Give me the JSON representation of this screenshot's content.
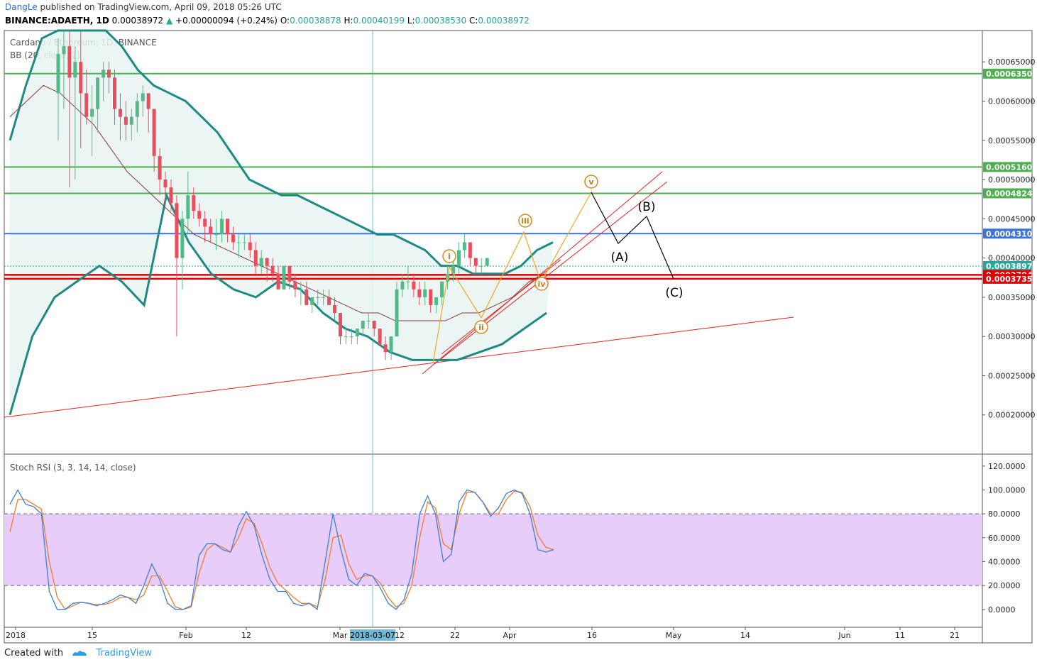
{
  "header": {
    "author": "DangLe",
    "published": "published on TradingView.com, April 09, 2018 05:26 UTC",
    "symbol": "BINANCE:ADAETH, 1D",
    "last": "0.00038972",
    "change": "+0.00000094 (+0.24%)",
    "o_label": "O:",
    "o": "0.00038878",
    "h_label": "H:",
    "h": "0.00040199",
    "l_label": "L:",
    "l": "0.00038530",
    "c_label": "C:",
    "c": "0.00038972"
  },
  "chart_data": {
    "type": "candlestick",
    "title": "Cardano / Ethereum, 1D, BINANCE",
    "indicator_label": "BB (20, close, 2)",
    "ylim": [
      0.00015,
      0.00069
    ],
    "x_ticks": [
      "2018",
      "15",
      "Feb",
      "12",
      "Mar",
      "12",
      "22",
      "Apr",
      "16",
      "May",
      "14",
      "Jun",
      "11",
      "21"
    ],
    "crosshair_date": "2018-03-07",
    "y_ticks": [
      "0.00065000",
      "0.00060000",
      "0.00055000",
      "0.00050000",
      "0.00045000",
      "0.00040000",
      "0.00035000",
      "0.00030000",
      "0.00025000",
      "0.00020000"
    ],
    "candles": [
      [
        0.00061,
        0.00068,
        0.00055,
        0.00066
      ],
      [
        0.00066,
        0.0007,
        0.00059,
        0.00067
      ],
      [
        0.00067,
        0.0007,
        0.00049,
        0.00063
      ],
      [
        0.00063,
        0.00067,
        0.0005,
        0.00065
      ],
      [
        0.00065,
        0.00069,
        0.00054,
        0.00061
      ],
      [
        0.00061,
        0.00064,
        0.00057,
        0.00058
      ],
      [
        0.00058,
        0.00062,
        0.00053,
        0.00059
      ],
      [
        0.00059,
        0.00063,
        0.00056,
        0.00063
      ],
      [
        0.00063,
        0.00065,
        0.0006,
        0.00064
      ],
      [
        0.00064,
        0.00065,
        0.00061,
        0.00063
      ],
      [
        0.00063,
        0.00064,
        0.00057,
        0.00059
      ],
      [
        0.00059,
        0.00061,
        0.00055,
        0.00058
      ],
      [
        0.00058,
        0.0006,
        0.00055,
        0.00057
      ],
      [
        0.00057,
        0.00059,
        0.00055,
        0.00058
      ],
      [
        0.00058,
        0.00061,
        0.00056,
        0.0006
      ],
      [
        0.0006,
        0.00062,
        0.00058,
        0.00061
      ],
      [
        0.00061,
        0.00061,
        0.00056,
        0.00059
      ],
      [
        0.00059,
        0.00059,
        0.00051,
        0.00053
      ],
      [
        0.00053,
        0.00054,
        0.00048,
        0.0005
      ],
      [
        0.0005,
        0.00051,
        0.00047,
        0.00049
      ],
      [
        0.00049,
        0.0005,
        0.00046,
        0.00047
      ],
      [
        0.00047,
        0.00048,
        0.0003,
        0.0004
      ],
      [
        0.0004,
        0.00046,
        0.00036,
        0.00045
      ],
      [
        0.00045,
        0.00051,
        0.00043,
        0.00048
      ],
      [
        0.00048,
        0.00049,
        0.00045,
        0.00046
      ],
      [
        0.00046,
        0.00047,
        0.00044,
        0.00045
      ],
      [
        0.00045,
        0.00046,
        0.00042,
        0.00044
      ],
      [
        0.00044,
        0.00045,
        0.00042,
        0.00043
      ],
      [
        0.00043,
        0.00045,
        0.00041,
        0.00043
      ],
      [
        0.00043,
        0.00046,
        0.00042,
        0.00045
      ],
      [
        0.00045,
        0.00045,
        0.00042,
        0.00043
      ],
      [
        0.00043,
        0.00044,
        0.00041,
        0.00042
      ],
      [
        0.00042,
        0.00043,
        0.0004,
        0.00042
      ],
      [
        0.00042,
        0.00043,
        0.00041,
        0.00042
      ],
      [
        0.00042,
        0.00043,
        0.0004,
        0.00041
      ],
      [
        0.00041,
        0.00042,
        0.00038,
        0.00039
      ],
      [
        0.00039,
        0.00041,
        0.00038,
        0.0004
      ],
      [
        0.0004,
        0.0004,
        0.00037,
        0.00039
      ],
      [
        0.00039,
        0.0004,
        0.00037,
        0.00038
      ],
      [
        0.00038,
        0.00039,
        0.00036,
        0.00036
      ],
      [
        0.00036,
        0.00039,
        0.00036,
        0.00039
      ],
      [
        0.00039,
        0.00039,
        0.00036,
        0.00037
      ],
      [
        0.00037,
        0.00038,
        0.00035,
        0.00036
      ],
      [
        0.00036,
        0.00037,
        0.00034,
        0.00036
      ],
      [
        0.00036,
        0.00037,
        0.00034,
        0.00034
      ],
      [
        0.00034,
        0.00035,
        0.00033,
        0.00035
      ],
      [
        0.00035,
        0.00036,
        0.00034,
        0.00035
      ],
      [
        0.00035,
        0.00036,
        0.00034,
        0.00035
      ],
      [
        0.00035,
        0.00036,
        0.00034,
        0.00034
      ],
      [
        0.00034,
        0.00035,
        0.00032,
        0.00033
      ],
      [
        0.00033,
        0.00033,
        0.00029,
        0.0003
      ],
      [
        0.0003,
        0.00031,
        0.00029,
        0.0003
      ],
      [
        0.0003,
        0.00031,
        0.00029,
        0.0003
      ],
      [
        0.0003,
        0.00031,
        0.00029,
        0.00031
      ],
      [
        0.00031,
        0.00032,
        0.0003,
        0.00032
      ],
      [
        0.00032,
        0.00033,
        0.00031,
        0.00032
      ],
      [
        0.00032,
        0.00032,
        0.0003,
        0.00031
      ],
      [
        0.00031,
        0.00031,
        0.00029,
        0.00029
      ],
      [
        0.00029,
        0.0003,
        0.00027,
        0.00028
      ],
      [
        0.00028,
        0.0003,
        0.00027,
        0.0003
      ],
      [
        0.0003,
        0.00037,
        0.0003,
        0.00036
      ],
      [
        0.00036,
        0.00038,
        0.00035,
        0.00037
      ],
      [
        0.00037,
        0.00039,
        0.00036,
        0.00037
      ],
      [
        0.00037,
        0.00038,
        0.00035,
        0.00036
      ],
      [
        0.00036,
        0.00037,
        0.00034,
        0.00035
      ],
      [
        0.00035,
        0.00037,
        0.00034,
        0.00036
      ],
      [
        0.00036,
        0.00036,
        0.00033,
        0.00034
      ],
      [
        0.00034,
        0.00035,
        0.00033,
        0.00035
      ],
      [
        0.00035,
        0.00037,
        0.00034,
        0.00037
      ],
      [
        0.00037,
        0.00039,
        0.00036,
        0.00038
      ],
      [
        0.00038,
        0.0004,
        0.00037,
        0.00039
      ],
      [
        0.00039,
        0.00042,
        0.00038,
        0.00041
      ],
      [
        0.00041,
        0.00043,
        0.0004,
        0.00042
      ],
      [
        0.00042,
        0.00042,
        0.00039,
        0.0004
      ],
      [
        0.0004,
        0.0004,
        0.00038,
        0.00039
      ],
      [
        0.00039,
        0.0004,
        0.00038,
        0.00039
      ],
      [
        0.00039,
        0.0004,
        0.00039,
        0.0004
      ]
    ],
    "bb_upper": [
      0.00055,
      0.00062,
      0.00068,
      0.00072,
      0.00074,
      0.00073,
      0.0007,
      0.00067,
      0.00064,
      0.00062,
      0.00061,
      0.0006,
      0.00058,
      0.00056,
      0.00053,
      0.0005,
      0.00049,
      0.00048,
      0.00048,
      0.00047,
      0.00046,
      0.00045,
      0.00044,
      0.00043,
      0.00043,
      0.00042,
      0.00041,
      0.00039,
      0.00039,
      0.00038,
      0.00038,
      0.00038,
      0.00039,
      0.00041,
      0.00042
    ],
    "bb_mid": [
      0.00058,
      0.0006,
      0.00062,
      0.00061,
      0.00059,
      0.00057,
      0.00054,
      0.00051,
      0.00049,
      0.00047,
      0.00045,
      0.00043,
      0.00042,
      0.00041,
      0.0004,
      0.00039,
      0.00038,
      0.00037,
      0.00036,
      0.00035,
      0.00034,
      0.00033,
      0.00033,
      0.00032,
      0.00032,
      0.00032,
      0.00032,
      0.00033,
      0.00033,
      0.00034,
      0.00035,
      0.00037,
      0.00038
    ],
    "bb_lower": [
      0.0002,
      0.0003,
      0.00035,
      0.00037,
      0.00039,
      0.00037,
      0.00034,
      0.00048,
      0.00042,
      0.00038,
      0.00036,
      0.00035,
      0.00037,
      0.00036,
      0.00033,
      0.00031,
      0.0003,
      0.00028,
      0.00027,
      0.00027,
      0.00027,
      0.00028,
      0.00029,
      0.00031,
      0.00033
    ],
    "horizontal_levels": [
      {
        "value": "0.00063500",
        "color": "#4caf50",
        "label_bg": "#4caf50"
      },
      {
        "value": "0.00051602",
        "color": "#4caf50",
        "label_bg": "#4caf50"
      },
      {
        "value": "0.00048245",
        "color": "#4caf50",
        "label_bg": "#4caf50"
      },
      {
        "value": "0.00043108",
        "color": "#3d74d8",
        "label_bg": "#3d74d8"
      },
      {
        "value": "0.00038972",
        "color": "#26a69a",
        "label_bg": "#26a69a"
      },
      {
        "value": "0.00037846",
        "color": "#e00000",
        "label_bg": "#e00000"
      },
      {
        "value": "0.00037353",
        "color": "#e00000",
        "label_bg": "#e00000"
      }
    ],
    "wave_labels": [
      "i",
      "ii",
      "iii",
      "iv",
      "v"
    ],
    "abc_labels": [
      "(A)",
      "(B)",
      "(C)"
    ],
    "stoch": {
      "label": "Stoch RSI (3, 3, 14, 14, close)",
      "ylim": [
        -15,
        130
      ],
      "y_ticks": [
        "120.0000",
        "100.0000",
        "80.0000",
        "60.0000",
        "40.0000",
        "20.0000",
        "0.0000"
      ],
      "band": [
        20,
        80
      ],
      "k": [
        88,
        100,
        88,
        86,
        80,
        15,
        0,
        0,
        5,
        6,
        5,
        3,
        5,
        8,
        12,
        10,
        5,
        20,
        38,
        25,
        5,
        0,
        0,
        3,
        45,
        55,
        55,
        50,
        48,
        70,
        82,
        70,
        45,
        25,
        15,
        15,
        5,
        3,
        5,
        0,
        40,
        80,
        50,
        25,
        20,
        30,
        28,
        18,
        5,
        0,
        8,
        30,
        80,
        95,
        80,
        40,
        46,
        90,
        100,
        98,
        90,
        78,
        85,
        97,
        100,
        97,
        80,
        50,
        48,
        50
      ],
      "d": [
        65,
        92,
        92,
        88,
        84,
        40,
        10,
        0,
        3,
        6,
        5,
        4,
        4,
        6,
        10,
        10,
        8,
        12,
        28,
        28,
        15,
        2,
        0,
        2,
        30,
        50,
        55,
        52,
        48,
        60,
        76,
        72,
        55,
        35,
        22,
        16,
        10,
        5,
        5,
        2,
        25,
        60,
        62,
        38,
        25,
        28,
        28,
        22,
        10,
        2,
        5,
        20,
        60,
        90,
        85,
        55,
        50,
        80,
        98,
        98,
        90,
        80,
        80,
        92,
        99,
        98,
        86,
        62,
        52,
        50
      ],
      "k_color": "#3d7fd8",
      "d_color": "#f47b2a"
    }
  },
  "footer": {
    "created_with": "Created with",
    "brand": "TradingView"
  }
}
